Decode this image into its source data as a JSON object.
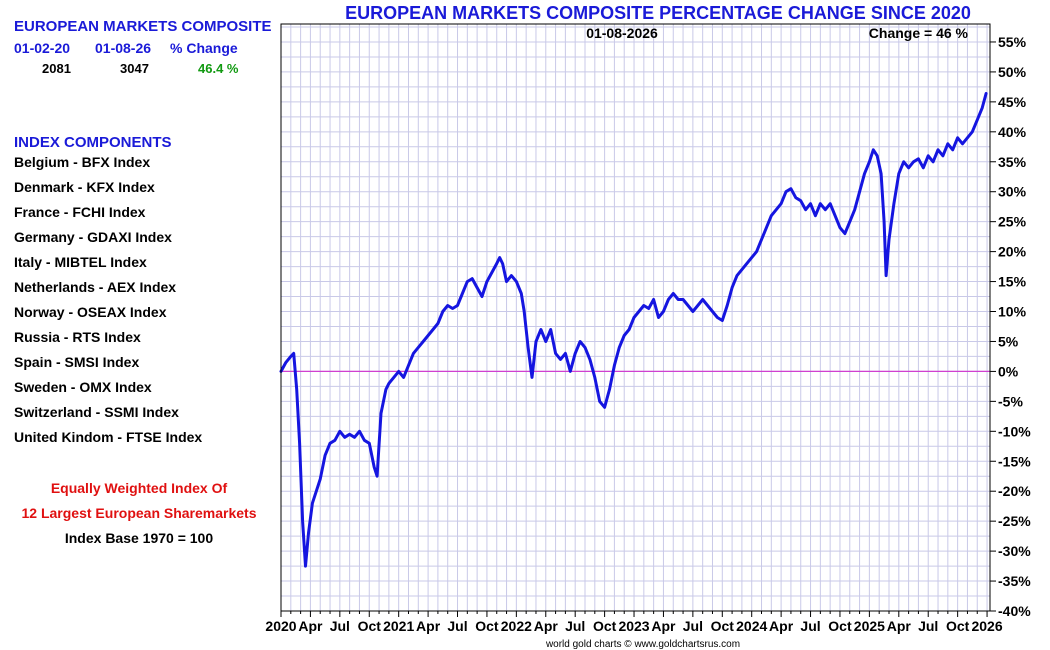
{
  "summary": {
    "title": "EUROPEAN MARKETS COMPOSITE",
    "col_start": "01-02-20",
    "col_end": "01-08-26",
    "col_change": "% Change",
    "start_value": "2081",
    "end_value": "3047",
    "change_value": "46.4 %"
  },
  "components": {
    "heading": "INDEX COMPONENTS",
    "items": [
      "Belgium - BFX Index",
      "Denmark - KFX Index",
      "France - FCHI Index",
      "Germany - GDAXI Index",
      "Italy - MIBTEL Index",
      "Netherlands - AEX Index",
      "Norway - OSEAX Index",
      "Russia - RTS Index",
      "Spain - SMSI Index",
      "Sweden - OMX Index",
      "Switzerland - SSMI Index",
      "United Kindom - FTSE Index"
    ]
  },
  "notes": {
    "line1": "Equally Weighted Index Of",
    "line2": "12 Largest European Sharemarkets",
    "line3": "Index Base 1970 = 100"
  },
  "colors": {
    "title": "#1a1ad8",
    "series": "#1515e0",
    "zero_line": "#d040d0",
    "grid": "#c9c9e8",
    "change_green": "#129a12",
    "note_red": "#e01010"
  },
  "chart_data": {
    "type": "line",
    "title": "EUROPEAN MARKETS COMPOSITE PERCENTAGE CHANGE SINCE 2020",
    "annotation_date": "01-08-2026",
    "annotation_change": "Change = 46 %",
    "credit": "world gold charts © www.goldchartsrus.com",
    "ylim": [
      -40,
      58
    ],
    "xlim": [
      0,
      72.3
    ],
    "y_ticks": [
      55,
      50,
      45,
      40,
      35,
      30,
      25,
      20,
      15,
      10,
      5,
      0,
      -5,
      -10,
      -15,
      -20,
      -25,
      -30,
      -35,
      -40
    ],
    "y_tick_labels": [
      "55%",
      "50%",
      "45%",
      "40%",
      "35%",
      "30%",
      "25%",
      "20%",
      "15%",
      "10%",
      "5%",
      "0%",
      "-5%",
      "-10%",
      "-15%",
      "-20%",
      "-25%",
      "-30%",
      "-35%",
      "-40%"
    ],
    "x_ticks": [
      {
        "m": 0,
        "label": "2020"
      },
      {
        "m": 3,
        "label": "Apr"
      },
      {
        "m": 6,
        "label": "Jul"
      },
      {
        "m": 9,
        "label": "Oct"
      },
      {
        "m": 12,
        "label": "2021"
      },
      {
        "m": 15,
        "label": "Apr"
      },
      {
        "m": 18,
        "label": "Jul"
      },
      {
        "m": 21,
        "label": "Oct"
      },
      {
        "m": 24,
        "label": "2022"
      },
      {
        "m": 27,
        "label": "Apr"
      },
      {
        "m": 30,
        "label": "Jul"
      },
      {
        "m": 33,
        "label": "Oct"
      },
      {
        "m": 36,
        "label": "2023"
      },
      {
        "m": 39,
        "label": "Apr"
      },
      {
        "m": 42,
        "label": "Jul"
      },
      {
        "m": 45,
        "label": "Oct"
      },
      {
        "m": 48,
        "label": "2024"
      },
      {
        "m": 51,
        "label": "Apr"
      },
      {
        "m": 54,
        "label": "Jul"
      },
      {
        "m": 57,
        "label": "Oct"
      },
      {
        "m": 60,
        "label": "2025"
      },
      {
        "m": 63,
        "label": "Apr"
      },
      {
        "m": 66,
        "label": "Jul"
      },
      {
        "m": 69,
        "label": "Oct"
      },
      {
        "m": 72,
        "label": "2026"
      }
    ],
    "series": [
      {
        "name": "European Markets Composite % change",
        "points": [
          [
            0,
            0
          ],
          [
            0.5,
            1.5
          ],
          [
            1,
            2.5
          ],
          [
            1.3,
            3
          ],
          [
            1.6,
            -3
          ],
          [
            1.9,
            -12
          ],
          [
            2.2,
            -25
          ],
          [
            2.5,
            -32.5
          ],
          [
            2.8,
            -27
          ],
          [
            3.2,
            -22
          ],
          [
            3.6,
            -20
          ],
          [
            4,
            -18
          ],
          [
            4.5,
            -14
          ],
          [
            5,
            -12
          ],
          [
            5.5,
            -11.5
          ],
          [
            6,
            -10
          ],
          [
            6.5,
            -11
          ],
          [
            7,
            -10.5
          ],
          [
            7.5,
            -11
          ],
          [
            8,
            -10
          ],
          [
            8.5,
            -11.5
          ],
          [
            9,
            -12
          ],
          [
            9.5,
            -16
          ],
          [
            9.8,
            -17.5
          ],
          [
            10.2,
            -7
          ],
          [
            10.7,
            -3
          ],
          [
            11,
            -2
          ],
          [
            11.5,
            -1
          ],
          [
            12,
            0
          ],
          [
            12.5,
            -1
          ],
          [
            13,
            1
          ],
          [
            13.5,
            3
          ],
          [
            14,
            4
          ],
          [
            14.5,
            5
          ],
          [
            15,
            6
          ],
          [
            15.5,
            7
          ],
          [
            16,
            8
          ],
          [
            16.5,
            10
          ],
          [
            17,
            11
          ],
          [
            17.5,
            10.5
          ],
          [
            18,
            11
          ],
          [
            18.5,
            13
          ],
          [
            19,
            15
          ],
          [
            19.5,
            15.5
          ],
          [
            20,
            14
          ],
          [
            20.5,
            12.5
          ],
          [
            21,
            15
          ],
          [
            21.5,
            16.5
          ],
          [
            22,
            18
          ],
          [
            22.3,
            19
          ],
          [
            22.6,
            18
          ],
          [
            23,
            15
          ],
          [
            23.5,
            16
          ],
          [
            24,
            15
          ],
          [
            24.5,
            13
          ],
          [
            24.8,
            10
          ],
          [
            25.2,
            4
          ],
          [
            25.6,
            -1
          ],
          [
            26,
            5
          ],
          [
            26.5,
            7
          ],
          [
            27,
            5
          ],
          [
            27.5,
            7
          ],
          [
            28,
            3
          ],
          [
            28.5,
            2
          ],
          [
            29,
            3
          ],
          [
            29.5,
            0
          ],
          [
            30,
            3
          ],
          [
            30.5,
            5
          ],
          [
            31,
            4
          ],
          [
            31.5,
            2
          ],
          [
            32,
            -1
          ],
          [
            32.5,
            -5
          ],
          [
            33,
            -6
          ],
          [
            33.5,
            -3
          ],
          [
            34,
            1
          ],
          [
            34.5,
            4
          ],
          [
            35,
            6
          ],
          [
            35.5,
            7
          ],
          [
            36,
            9
          ],
          [
            36.5,
            10
          ],
          [
            37,
            11
          ],
          [
            37.5,
            10.5
          ],
          [
            38,
            12
          ],
          [
            38.5,
            9
          ],
          [
            39,
            10
          ],
          [
            39.5,
            12
          ],
          [
            40,
            13
          ],
          [
            40.5,
            12
          ],
          [
            41,
            12
          ],
          [
            41.5,
            11
          ],
          [
            42,
            10
          ],
          [
            42.5,
            11
          ],
          [
            43,
            12
          ],
          [
            43.5,
            11
          ],
          [
            44,
            10
          ],
          [
            44.5,
            9
          ],
          [
            45,
            8.5
          ],
          [
            45.5,
            11
          ],
          [
            46,
            14
          ],
          [
            46.5,
            16
          ],
          [
            47,
            17
          ],
          [
            47.5,
            18
          ],
          [
            48,
            19
          ],
          [
            48.5,
            20
          ],
          [
            49,
            22
          ],
          [
            49.5,
            24
          ],
          [
            50,
            26
          ],
          [
            50.5,
            27
          ],
          [
            51,
            28
          ],
          [
            51.5,
            30
          ],
          [
            52,
            30.5
          ],
          [
            52.5,
            29
          ],
          [
            53,
            28.5
          ],
          [
            53.5,
            27
          ],
          [
            54,
            28
          ],
          [
            54.5,
            26
          ],
          [
            55,
            28
          ],
          [
            55.5,
            27
          ],
          [
            56,
            28
          ],
          [
            56.5,
            26
          ],
          [
            57,
            24
          ],
          [
            57.5,
            23
          ],
          [
            58,
            25
          ],
          [
            58.5,
            27
          ],
          [
            59,
            30
          ],
          [
            59.5,
            33
          ],
          [
            60,
            35
          ],
          [
            60.4,
            37
          ],
          [
            60.8,
            36
          ],
          [
            61.2,
            33
          ],
          [
            61.5,
            25
          ],
          [
            61.7,
            16
          ],
          [
            62,
            22
          ],
          [
            62.5,
            28
          ],
          [
            63,
            33
          ],
          [
            63.5,
            35
          ],
          [
            64,
            34
          ],
          [
            64.5,
            35
          ],
          [
            65,
            35.5
          ],
          [
            65.5,
            34
          ],
          [
            66,
            36
          ],
          [
            66.5,
            35
          ],
          [
            67,
            37
          ],
          [
            67.5,
            36
          ],
          [
            68,
            38
          ],
          [
            68.5,
            37
          ],
          [
            69,
            39
          ],
          [
            69.5,
            38
          ],
          [
            70,
            39
          ],
          [
            70.5,
            40
          ],
          [
            71,
            42
          ],
          [
            71.5,
            44
          ],
          [
            71.9,
            46.4
          ]
        ]
      }
    ]
  }
}
